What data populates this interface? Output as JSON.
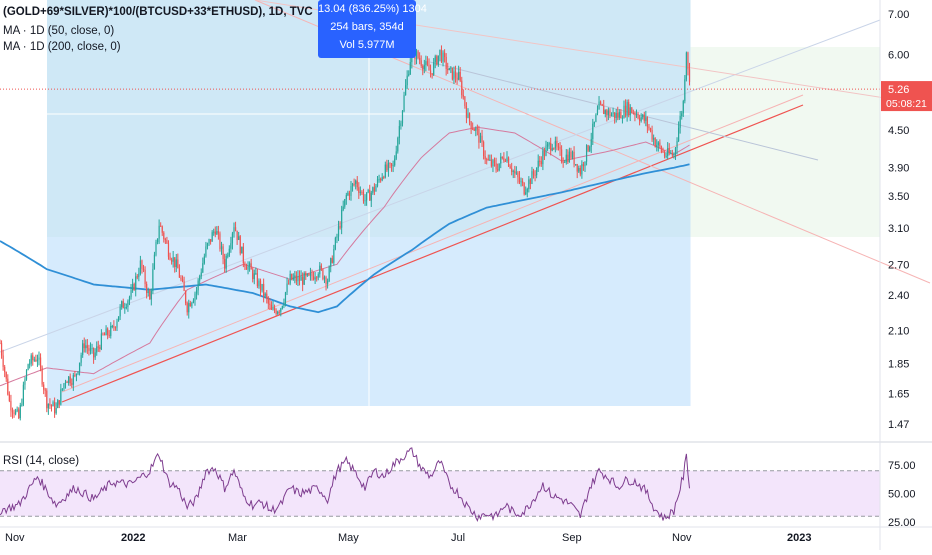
{
  "header": {
    "symbol_line": "(GOLD+69*SILVER)*100/(BTCUSD+33*ETHUSD), 1D, TVC",
    "ma50_label": "MA · 1D (50, close, 0)",
    "ma200_label": "MA · 1D (200, close, 0)",
    "rsi_label": "RSI (14, close)"
  },
  "measure_tooltip": {
    "line1": "13.04 (836.25%) 1304",
    "line2": "254 bars, 354d",
    "line3": "Vol 5.977M"
  },
  "price_axis": {
    "ticks": [
      "7.00",
      "6.00",
      "5.26",
      "4.50",
      "3.90",
      "3.50",
      "3.10",
      "2.70",
      "2.40",
      "2.10",
      "1.85",
      "1.65",
      "1.47"
    ],
    "tick_values": [
      7.0,
      6.0,
      5.26,
      4.5,
      3.9,
      3.5,
      3.1,
      2.7,
      2.4,
      2.1,
      1.85,
      1.65,
      1.47
    ],
    "last_price_label": "5.26",
    "countdown_label": "05:08:21"
  },
  "rsi_axis": {
    "ticks": [
      "75.00",
      "50.00",
      "25.00"
    ],
    "tick_values": [
      75,
      50,
      25
    ],
    "upper_band": 70,
    "lower_band": 30
  },
  "time_axis": {
    "labels": [
      "Nov",
      "2022",
      "Mar",
      "May",
      "Jul",
      "Sep",
      "Nov",
      "2023"
    ]
  },
  "colors": {
    "up": "#26a69a",
    "down": "#ef5350",
    "ma50": "#d57a9e",
    "ma200": "#2f8fd6",
    "measure_fill": "#bbdefb",
    "measure_accent": "#2962ff",
    "rsi_line": "#7e3d8f",
    "rsi_band": "#f3e5fb",
    "last_price_badge": "#ef5350"
  },
  "chart_data": {
    "type": "candlestick",
    "title": "(GOLD+69*SILVER)*100/(BTCUSD+33*ETHUSD), 1D, TVC",
    "scale": "log",
    "ylim": [
      1.4,
      7.3
    ],
    "grid": false,
    "last_price": 5.26,
    "price_path": [
      [
        0,
        2.0
      ],
      [
        6,
        1.6
      ],
      [
        12,
        1.5
      ],
      [
        18,
        1.85
      ],
      [
        24,
        1.9
      ],
      [
        30,
        1.6
      ],
      [
        36,
        1.55
      ],
      [
        42,
        1.75
      ],
      [
        48,
        1.75
      ],
      [
        54,
        2.0
      ],
      [
        60,
        1.9
      ],
      [
        66,
        2.05
      ],
      [
        72,
        2.1
      ],
      [
        78,
        2.3
      ],
      [
        84,
        2.4
      ],
      [
        90,
        2.7
      ],
      [
        96,
        2.35
      ],
      [
        102,
        3.15
      ],
      [
        108,
        2.85
      ],
      [
        114,
        2.65
      ],
      [
        120,
        2.3
      ],
      [
        126,
        2.45
      ],
      [
        132,
        2.85
      ],
      [
        138,
        3.1
      ],
      [
        144,
        2.7
      ],
      [
        150,
        3.15
      ],
      [
        156,
        2.75
      ],
      [
        162,
        2.6
      ],
      [
        168,
        2.45
      ],
      [
        174,
        2.25
      ],
      [
        180,
        2.3
      ],
      [
        186,
        2.55
      ],
      [
        192,
        2.55
      ],
      [
        198,
        2.55
      ],
      [
        204,
        2.65
      ],
      [
        210,
        2.55
      ],
      [
        216,
        3.0
      ],
      [
        222,
        3.5
      ],
      [
        228,
        3.7
      ],
      [
        234,
        3.45
      ],
      [
        240,
        3.6
      ],
      [
        246,
        3.85
      ],
      [
        252,
        3.9
      ],
      [
        258,
        4.9
      ],
      [
        264,
        6.1
      ],
      [
        270,
        5.85
      ],
      [
        276,
        5.6
      ],
      [
        282,
        6.05
      ],
      [
        288,
        5.6
      ],
      [
        294,
        5.5
      ],
      [
        300,
        4.7
      ],
      [
        306,
        4.45
      ],
      [
        312,
        4.0
      ],
      [
        318,
        3.9
      ],
      [
        324,
        4.1
      ],
      [
        330,
        3.8
      ],
      [
        336,
        3.6
      ],
      [
        342,
        3.8
      ],
      [
        348,
        4.1
      ],
      [
        354,
        4.3
      ],
      [
        360,
        4.05
      ],
      [
        366,
        4.1
      ],
      [
        372,
        3.85
      ],
      [
        378,
        4.3
      ],
      [
        384,
        4.9
      ],
      [
        390,
        4.8
      ],
      [
        396,
        4.75
      ],
      [
        402,
        4.9
      ],
      [
        408,
        4.8
      ],
      [
        414,
        4.65
      ],
      [
        420,
        4.3
      ],
      [
        426,
        4.1
      ],
      [
        432,
        4.1
      ],
      [
        438,
        5.0
      ],
      [
        440,
        6.15
      ],
      [
        442,
        5.35
      ]
    ],
    "ma50_path": [
      [
        0,
        1.7
      ],
      [
        30,
        1.82
      ],
      [
        60,
        1.78
      ],
      [
        96,
        2.0
      ],
      [
        120,
        2.45
      ],
      [
        156,
        2.7
      ],
      [
        186,
        2.55
      ],
      [
        216,
        2.7
      ],
      [
        246,
        3.35
      ],
      [
        270,
        4.05
      ],
      [
        288,
        4.45
      ],
      [
        306,
        4.55
      ],
      [
        330,
        4.45
      ],
      [
        360,
        4.0
      ],
      [
        390,
        4.15
      ],
      [
        414,
        4.3
      ],
      [
        432,
        4.1
      ],
      [
        442,
        4.25
      ]
    ],
    "ma200_path": [
      [
        0,
        2.95
      ],
      [
        30,
        2.65
      ],
      [
        60,
        2.5
      ],
      [
        96,
        2.45
      ],
      [
        132,
        2.5
      ],
      [
        162,
        2.42
      ],
      [
        186,
        2.3
      ],
      [
        204,
        2.25
      ],
      [
        216,
        2.3
      ],
      [
        240,
        2.6
      ],
      [
        264,
        2.85
      ],
      [
        288,
        3.15
      ],
      [
        312,
        3.35
      ],
      [
        336,
        3.45
      ],
      [
        360,
        3.55
      ],
      [
        390,
        3.7
      ],
      [
        414,
        3.82
      ],
      [
        432,
        3.9
      ],
      [
        442,
        3.95
      ]
    ],
    "rsi_path": [
      [
        0,
        35
      ],
      [
        12,
        40
      ],
      [
        24,
        65
      ],
      [
        36,
        40
      ],
      [
        48,
        55
      ],
      [
        60,
        45
      ],
      [
        72,
        60
      ],
      [
        84,
        58
      ],
      [
        96,
        70
      ],
      [
        102,
        85
      ],
      [
        108,
        60
      ],
      [
        114,
        55
      ],
      [
        120,
        38
      ],
      [
        126,
        45
      ],
      [
        132,
        70
      ],
      [
        138,
        72
      ],
      [
        144,
        55
      ],
      [
        150,
        70
      ],
      [
        156,
        48
      ],
      [
        162,
        40
      ],
      [
        168,
        42
      ],
      [
        174,
        35
      ],
      [
        180,
        40
      ],
      [
        186,
        55
      ],
      [
        192,
        50
      ],
      [
        198,
        52
      ],
      [
        204,
        55
      ],
      [
        210,
        45
      ],
      [
        216,
        70
      ],
      [
        222,
        78
      ],
      [
        228,
        68
      ],
      [
        234,
        55
      ],
      [
        240,
        70
      ],
      [
        246,
        65
      ],
      [
        252,
        75
      ],
      [
        258,
        82
      ],
      [
        264,
        88
      ],
      [
        270,
        72
      ],
      [
        276,
        65
      ],
      [
        282,
        78
      ],
      [
        288,
        58
      ],
      [
        294,
        50
      ],
      [
        300,
        38
      ],
      [
        306,
        30
      ],
      [
        312,
        32
      ],
      [
        318,
        30
      ],
      [
        324,
        40
      ],
      [
        330,
        32
      ],
      [
        336,
        34
      ],
      [
        342,
        45
      ],
      [
        348,
        58
      ],
      [
        354,
        48
      ],
      [
        360,
        45
      ],
      [
        366,
        40
      ],
      [
        372,
        30
      ],
      [
        378,
        55
      ],
      [
        384,
        70
      ],
      [
        390,
        64
      ],
      [
        396,
        56
      ],
      [
        402,
        62
      ],
      [
        408,
        60
      ],
      [
        414,
        52
      ],
      [
        420,
        36
      ],
      [
        426,
        28
      ],
      [
        432,
        35
      ],
      [
        438,
        65
      ],
      [
        440,
        82
      ],
      [
        442,
        57
      ]
    ]
  }
}
